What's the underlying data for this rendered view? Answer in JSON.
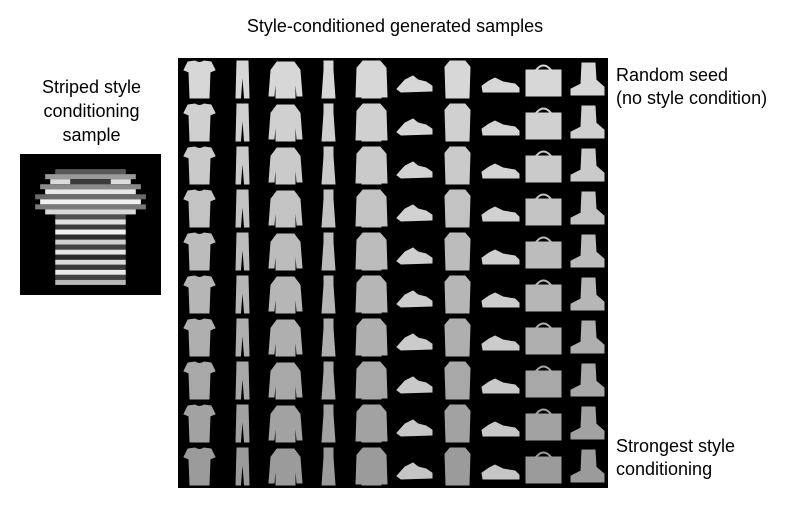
{
  "figure": {
    "title": "Style-conditioned generated samples",
    "conditioning": {
      "label_lines": [
        "Striped style",
        "conditioning",
        "sample"
      ],
      "icon": "striped-tshirt-thumbnail"
    },
    "row_labels": {
      "top": [
        "Random seed",
        "(no style condition)"
      ],
      "bottom": [
        "Strongest style",
        "conditioning"
      ]
    },
    "grid": {
      "rows": 10,
      "columns": [
        "tshirt",
        "trouser",
        "pullover",
        "dress",
        "coat",
        "sandal",
        "shirt",
        "sneaker",
        "bag",
        "ankle-boot"
      ],
      "background": "#000000"
    }
  }
}
